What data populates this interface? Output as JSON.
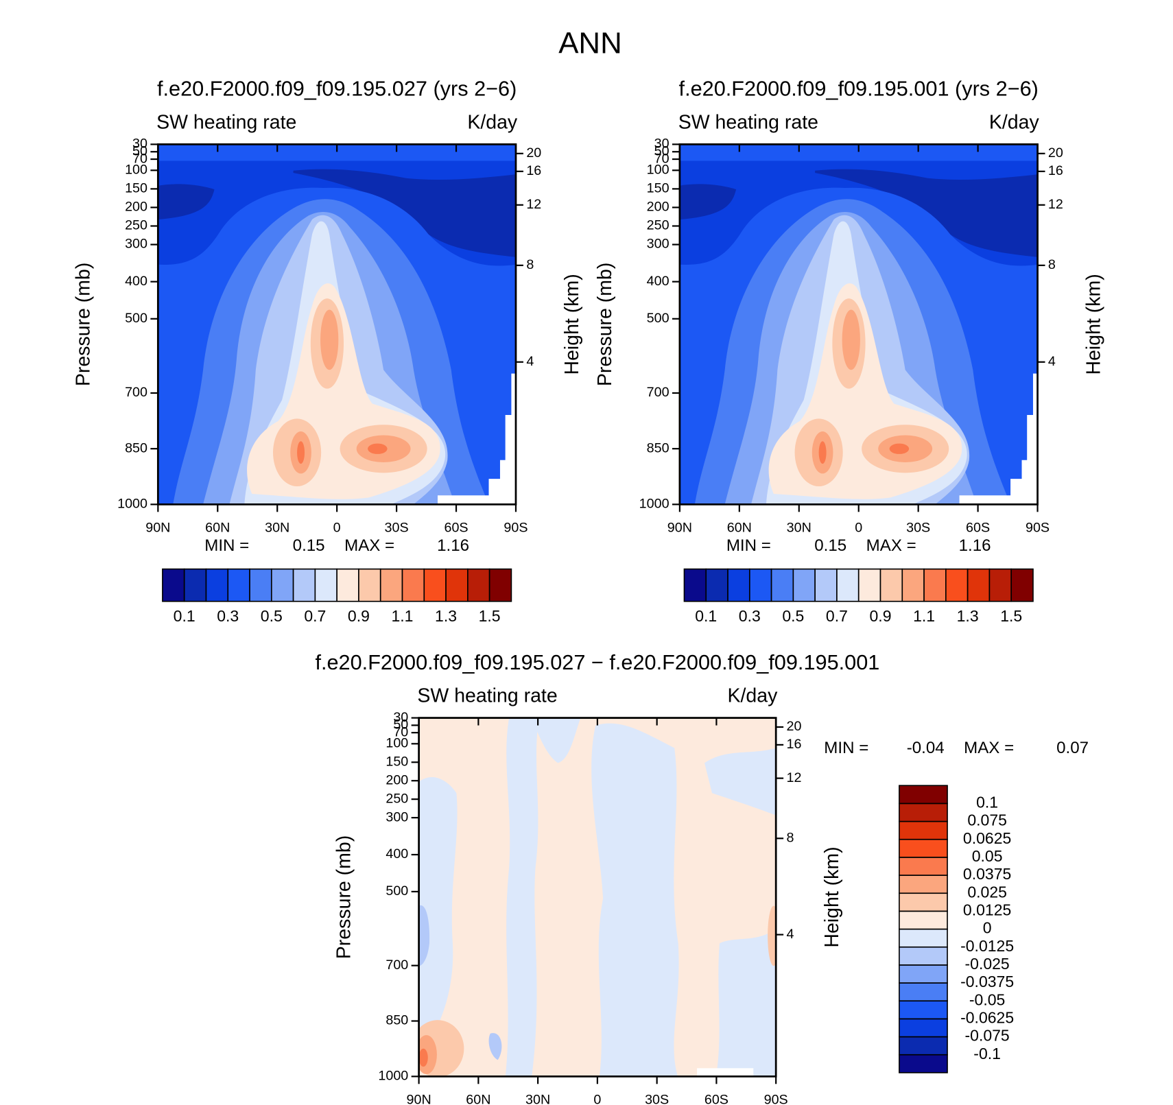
{
  "title": "ANN",
  "chart_data": [
    {
      "type": "contour",
      "title": "f.e20.F2000.f09_f09.195.027 (yrs 2−6)",
      "left_string": "SW heating rate",
      "right_string": "K/day",
      "ylabel": "Pressure (mb)",
      "y2label": "Height (km)",
      "xlim": [
        90,
        -90
      ],
      "xticks": [
        {
          "value": 90,
          "label": "90N"
        },
        {
          "value": 60,
          "label": "60N"
        },
        {
          "value": 30,
          "label": "30N"
        },
        0,
        {
          "value": -30,
          "label": "30S"
        },
        {
          "value": -60,
          "label": "60S"
        },
        {
          "value": -90,
          "label": "90S"
        }
      ],
      "ylim": [
        1000,
        30
      ],
      "yticks": [
        30,
        50,
        70,
        100,
        150,
        200,
        250,
        300,
        400,
        500,
        700,
        850,
        1000
      ],
      "y2ticks": [
        20,
        16,
        12,
        8,
        4
      ],
      "min_label": "MIN =",
      "min": 0.15,
      "max_label": "MAX =",
      "max": 1.16,
      "colorbar": "horizontal",
      "colors": [
        "#0a0a8c",
        "#0b2bb0",
        "#0b3fe0",
        "#1c58f4",
        "#4a7ef5",
        "#80a5f7",
        "#b3c9f9",
        "#dce8fb",
        "#fdeadd",
        "#fcc9ab",
        "#fba67e",
        "#fa7a4e",
        "#f94f1d",
        "#e0340a",
        "#b81e07",
        "#800000"
      ],
      "levels": [
        0.1,
        0.2,
        0.3,
        0.4,
        0.5,
        0.6,
        0.7,
        0.8,
        0.9,
        1.0,
        1.1,
        1.2,
        1.3,
        1.4,
        1.5
      ],
      "level_ticks": [
        0.1,
        0.3,
        0.5,
        0.7,
        0.9,
        1.1,
        1.3,
        1.5
      ]
    },
    {
      "type": "contour",
      "title": "f.e20.F2000.f09_f09.195.001 (yrs 2−6)",
      "left_string": "SW heating rate",
      "right_string": "K/day",
      "ylabel": "Pressure (mb)",
      "y2label": "Height (km)",
      "xlim": [
        90,
        -90
      ],
      "xticks": [
        {
          "value": 90,
          "label": "90N"
        },
        {
          "value": 60,
          "label": "60N"
        },
        {
          "value": 30,
          "label": "30N"
        },
        0,
        {
          "value": -30,
          "label": "30S"
        },
        {
          "value": -60,
          "label": "60S"
        },
        {
          "value": -90,
          "label": "90S"
        }
      ],
      "ylim": [
        1000,
        30
      ],
      "yticks": [
        30,
        50,
        70,
        100,
        150,
        200,
        250,
        300,
        400,
        500,
        700,
        850,
        1000
      ],
      "y2ticks": [
        20,
        16,
        12,
        8,
        4
      ],
      "min_label": "MIN =",
      "min": 0.15,
      "max_label": "MAX =",
      "max": 1.16,
      "colorbar": "horizontal",
      "colors": [
        "#0a0a8c",
        "#0b2bb0",
        "#0b3fe0",
        "#1c58f4",
        "#4a7ef5",
        "#80a5f7",
        "#b3c9f9",
        "#dce8fb",
        "#fdeadd",
        "#fcc9ab",
        "#fba67e",
        "#fa7a4e",
        "#f94f1d",
        "#e0340a",
        "#b81e07",
        "#800000"
      ],
      "levels": [
        0.1,
        0.2,
        0.3,
        0.4,
        0.5,
        0.6,
        0.7,
        0.8,
        0.9,
        1.0,
        1.1,
        1.2,
        1.3,
        1.4,
        1.5
      ],
      "level_ticks": [
        0.1,
        0.3,
        0.5,
        0.7,
        0.9,
        1.1,
        1.3,
        1.5
      ]
    },
    {
      "type": "contour",
      "title": "f.e20.F2000.f09_f09.195.027 − f.e20.F2000.f09_f09.195.001",
      "left_string": "SW heating rate",
      "right_string": "K/day",
      "ylabel": "Pressure (mb)",
      "y2label": "Height (km)",
      "xlim": [
        90,
        -90
      ],
      "xticks": [
        {
          "value": 90,
          "label": "90N"
        },
        {
          "value": 60,
          "label": "60N"
        },
        {
          "value": 30,
          "label": "30N"
        },
        0,
        {
          "value": -30,
          "label": "30S"
        },
        {
          "value": -60,
          "label": "60S"
        },
        {
          "value": -90,
          "label": "90S"
        }
      ],
      "ylim": [
        1000,
        30
      ],
      "yticks": [
        30,
        50,
        70,
        100,
        150,
        200,
        250,
        300,
        400,
        500,
        700,
        850,
        1000
      ],
      "y2ticks": [
        20,
        16,
        12,
        8,
        4
      ],
      "min_label": "MIN =",
      "min": -0.04,
      "max_label": "MAX =",
      "max": 0.07,
      "colorbar": "vertical",
      "colors": [
        "#0a0a8c",
        "#0b2bb0",
        "#0b3fe0",
        "#1c58f4",
        "#4a7ef5",
        "#80a5f7",
        "#b3c9f9",
        "#dce8fb",
        "#fdeadd",
        "#fcc9ab",
        "#fba67e",
        "#fa7a4e",
        "#f94f1d",
        "#e0340a",
        "#b81e07",
        "#800000"
      ],
      "levels": [
        -0.1,
        -0.075,
        -0.0625,
        -0.05,
        -0.0375,
        -0.025,
        -0.0125,
        0,
        0.0125,
        0.025,
        0.0375,
        0.05,
        0.0625,
        0.075,
        0.1
      ]
    }
  ]
}
